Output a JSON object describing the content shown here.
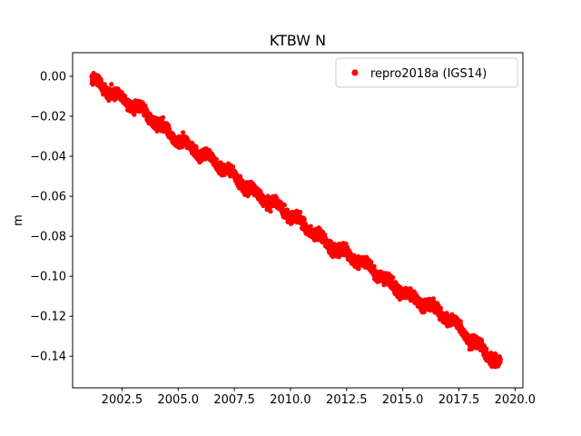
{
  "figure": {
    "title": "KTBW N",
    "background": "#ffffff"
  },
  "chart_data": {
    "type": "scatter",
    "title": "KTBW N",
    "xlabel": "",
    "ylabel": "m",
    "grid": false,
    "xlim": [
      2000.3,
      2020.35
    ],
    "ylim": [
      -0.1558,
      0.0118
    ],
    "xticks": [
      2002.5,
      2005.0,
      2007.5,
      2010.0,
      2012.5,
      2015.0,
      2017.5,
      2020.0
    ],
    "xtick_labels": [
      "2002.5",
      "2005.0",
      "2007.5",
      "2010.0",
      "2012.5",
      "2015.0",
      "2017.5",
      "2020.0"
    ],
    "yticks": [
      0.0,
      -0.02,
      -0.04,
      -0.06,
      -0.08,
      -0.1,
      -0.12,
      -0.14
    ],
    "ytick_labels": [
      "0.00",
      "−0.02",
      "−0.04",
      "−0.06",
      "−0.08",
      "−0.10",
      "−0.12",
      "−0.14"
    ],
    "legend": {
      "position": "upper right",
      "entries": [
        {
          "label": "repro2018a (IGS14)",
          "color": "#ff0000",
          "marker": "circle"
        }
      ]
    },
    "series": [
      {
        "name": "repro2018a (IGS14)",
        "color": "#ff0000",
        "marker": "circle",
        "x_start": 2001.15,
        "x_end": 2019.35,
        "slope_m_per_yr": -0.008,
        "trend_points": [
          [
            2001.15,
            -0.001
          ],
          [
            2002.5,
            -0.011
          ],
          [
            2005.0,
            -0.031
          ],
          [
            2007.5,
            -0.05
          ],
          [
            2010.0,
            -0.07
          ],
          [
            2012.5,
            -0.089
          ],
          [
            2015.0,
            -0.107
          ],
          [
            2017.5,
            -0.125
          ],
          [
            2019.35,
            -0.1445
          ]
        ],
        "seasonal_amplitude_m": 0.0016,
        "noise_sigma_m": 0.0013,
        "n_points": 4000
      }
    ]
  }
}
